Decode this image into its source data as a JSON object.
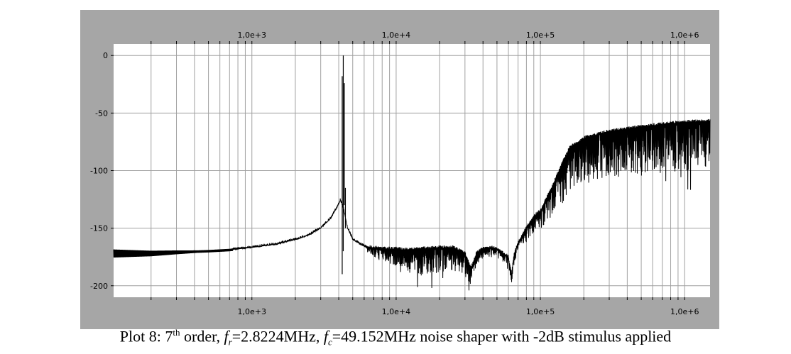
{
  "chart_data": {
    "type": "line",
    "title": "",
    "xlabel": "",
    "ylabel": "",
    "x_scale": "log",
    "xlim": [
      110,
      1500000
    ],
    "ylim": [
      -210,
      10
    ],
    "grid": true,
    "x_tick_labels": [
      "1,0e+3",
      "1,0e+4",
      "1,0e+5",
      "1,0e+6"
    ],
    "x_tick_values": [
      1000,
      10000,
      100000,
      1000000
    ],
    "y_tick_labels": [
      "0",
      "-50",
      "-100",
      "-150",
      "-200"
    ],
    "y_tick_values": [
      0,
      -50,
      -100,
      -150,
      -200
    ],
    "colors": {
      "frame": "#a6a6a6",
      "plot_bg": "#ffffff",
      "grid": "#a0a0a0",
      "trace": "#000000"
    },
    "series": [
      {
        "values_description_free": true,
        "x": [
          110,
          200,
          300,
          500,
          700,
          1000,
          1500,
          2000,
          2500,
          3000,
          3500,
          3900,
          4100,
          4250,
          4400,
          4600,
          5000,
          6000,
          7000,
          8000,
          10000,
          12000,
          15000,
          20000,
          25000,
          30000,
          33000,
          36000,
          40000,
          45000,
          50000,
          55000,
          60000,
          63000,
          66000,
          70000,
          80000,
          90000,
          100000,
          120000,
          140000,
          160000,
          200000,
          300000,
          500000,
          800000,
          1000000,
          1500000
        ],
        "values": [
          -172,
          -172,
          -171,
          -170,
          -169,
          -167,
          -164,
          -160,
          -156,
          -150,
          -142,
          -132,
          -126,
          -130,
          -138,
          -150,
          -160,
          -166,
          -167,
          -168,
          -168,
          -169,
          -168,
          -167,
          -167,
          -172,
          -185,
          -172,
          -168,
          -167,
          -168,
          -172,
          -175,
          -190,
          -172,
          -163,
          -150,
          -140,
          -135,
          -115,
          -95,
          -80,
          -72,
          -66,
          -62,
          -59,
          -58,
          -57
        ],
        "peak": {
          "x": 4300,
          "y": 0,
          "spur_min": -190
        },
        "band_lower_offset": [
          0,
          0,
          0,
          0,
          0,
          0,
          0,
          0,
          0,
          0,
          0,
          0,
          0,
          0,
          0,
          0,
          0,
          0,
          8,
          10,
          15,
          18,
          22,
          22,
          20,
          20,
          15,
          10,
          8,
          8,
          8,
          8,
          8,
          8,
          8,
          8,
          12,
          14,
          16,
          25,
          35,
          40,
          40,
          40,
          42,
          42,
          42,
          42
        ]
      }
    ]
  },
  "caption": {
    "prefix": "Plot 8: 7",
    "sup": "th",
    "mid1": " order, ",
    "f1": "f",
    "sub1": "r",
    "eq1": "=2.8224MHz, ",
    "f2": "f",
    "sub2": "c",
    "eq2": "=49.152MHz noise shaper with -2dB stimulus applied"
  }
}
